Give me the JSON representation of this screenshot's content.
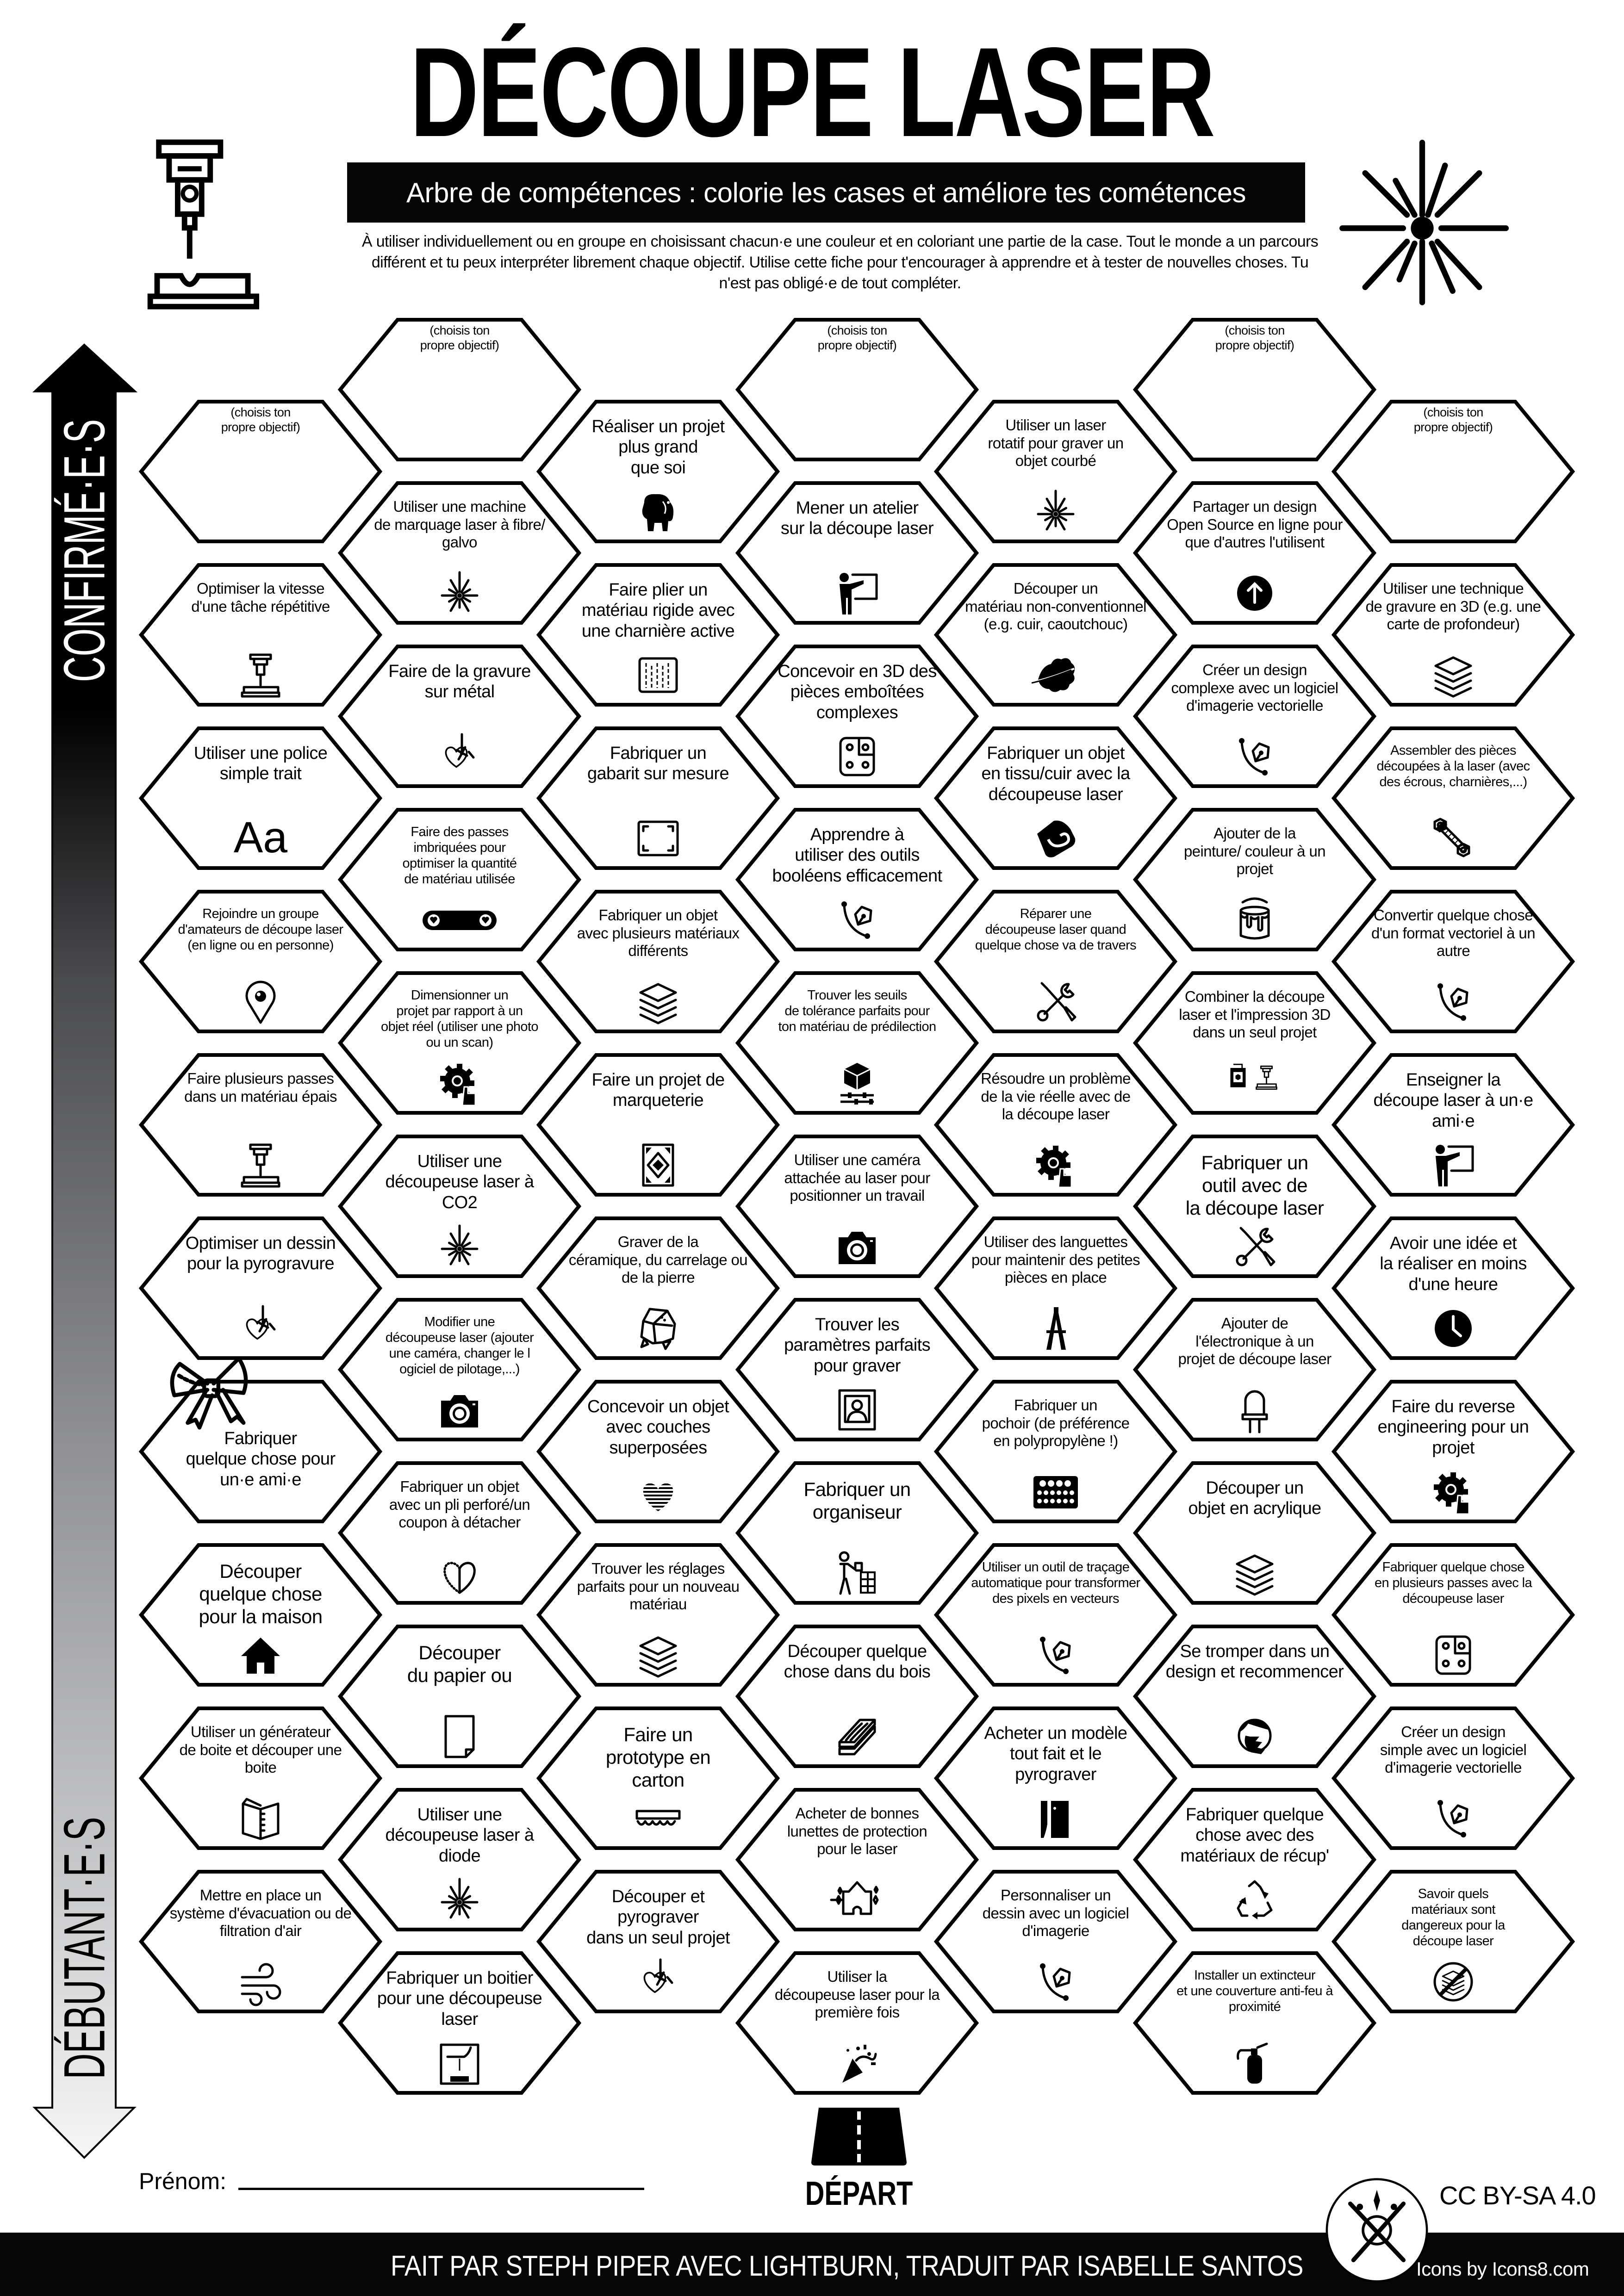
{
  "header": {
    "title": "DÉCOUPE LASER",
    "subtitle": "Arbre de compétences : colorie les cases et améliore tes cométences",
    "intro": "À utiliser individuellement ou en groupe en choisissant chacun·e une couleur et en coloriant une partie de la case. Tout le monde a un parcours\ndifférent et tu peux interpréter librement chaque objectif. Utilise cette fiche pour t'encourager à apprendre et à tester de nouvelles choses. Tu\nn'est pas obligé·e de tout compléter.",
    "left_icon": "laser-machine-icon",
    "right_icon": "laser-burst-icon"
  },
  "scale": {
    "top_label": "CONFIRMÉ·E·S",
    "bottom_label": "DÉBUTANT·E·S"
  },
  "columns": [
    [
      {
        "text": "(choisis ton\npropre objectif)",
        "icon": null
      },
      {
        "text": "Optimiser la vitesse\nd'une tâche répétitive",
        "icon": "laser-machine"
      },
      {
        "text": "Utiliser une police\nsimple trait",
        "icon": "font",
        "glyph": "Aa"
      },
      {
        "text": "Rejoindre un groupe\nd'amateurs de découpe laser\n(en ligne ou en personne)",
        "icon": "location-pin"
      },
      {
        "text": "Faire plusieurs passes\ndans un matériau épais",
        "icon": "laser-machine"
      },
      {
        "text": "Optimiser un dessin\npour la pyrogravure",
        "icon": "heart-laser"
      },
      {
        "text": "Fabriquer\nquelque chose pour\nun·e ami·e",
        "icon": "bow"
      },
      {
        "text": "Découper\nquelque chose\npour la maison",
        "icon": "house"
      },
      {
        "text": "Utiliser un générateur\nde boite et découper une\nboite",
        "icon": "box-book"
      },
      {
        "text": "Mettre en place un\nsystème d'évacuation ou de\nfiltration d'air",
        "icon": "wind"
      }
    ],
    [
      {
        "text": "(choisis ton\npropre objectif)",
        "icon": null
      },
      {
        "text": "Utiliser une machine\nde marquage laser à fibre/\ngalvo",
        "icon": "laser-burst"
      },
      {
        "text": "Faire de la gravure\nsur métal",
        "icon": "heart-laser"
      },
      {
        "text": "Faire des passes\nimbriquées pour\noptimiser la quantité\nde matériau utilisée",
        "icon": "nesting"
      },
      {
        "text": "Dimensionner un\nprojet par rapport à un\nobjet réel (utiliser une photo\nou un scan)",
        "icon": "gear-hand"
      },
      {
        "text": "Utiliser une\ndécoupeuse laser à\nCO2",
        "icon": "laser-burst"
      },
      {
        "text": "Modifier une\ndécoupeuse laser (ajouter\nune caméra, changer le l\nogiciel de pilotage,...)",
        "icon": "camera"
      },
      {
        "text": "Fabriquer un objet\navec un pli perforé/un\ncoupon à détacher",
        "icon": "half-heart"
      },
      {
        "text": "Découper\ndu papier ou",
        "icon": "paper"
      },
      {
        "text": "Utiliser une\ndécoupeuse laser à\ndiode",
        "icon": "laser-burst"
      },
      {
        "text": "Fabriquer un boitier\npour une découpeuse\nlaser",
        "icon": "enclosure"
      }
    ],
    [
      {
        "text": "Réaliser un projet\nplus grand\nque soi",
        "icon": "elephant"
      },
      {
        "text": "Faire plier un\nmatériau rigide avec\nune charnière active",
        "icon": "living-hinge"
      },
      {
        "text": "Fabriquer un\ngabarit sur mesure",
        "icon": "frame-corners"
      },
      {
        "text": "Fabriquer un objet\navec plusieurs matériaux\ndifférents",
        "icon": "layers"
      },
      {
        "text": "Faire un projet de\nmarqueterie",
        "icon": "marquetry"
      },
      {
        "text": "Graver de la\ncéramique, du carrelage ou\nde la pierre",
        "icon": "stone"
      },
      {
        "text": "Concevoir un objet\navec couches\nsuperposées",
        "icon": "striped-heart"
      },
      {
        "text": "Trouver les réglages\nparfaits pour un nouveau\nmatériau",
        "icon": "layers"
      },
      {
        "text": "Faire un\nprototype en\ncarton",
        "icon": "cardboard"
      },
      {
        "text": "Découper et\npyrograver\ndans un seul projet",
        "icon": "heart-laser"
      }
    ],
    [
      {
        "text": "(choisis ton\npropre objectif)",
        "icon": null
      },
      {
        "text": "Mener un atelier\nsur la découpe laser",
        "icon": "presenter"
      },
      {
        "text": "Concevoir en 3D des\npièces emboîtées\ncomplexes",
        "icon": "puzzle-box"
      },
      {
        "text": "Apprendre à\nutiliser des outils\nbooléens efficacement",
        "icon": "pen-tool"
      },
      {
        "text": "Trouver les seuils\nde tolérance parfaits pour\nton matériau de prédilection",
        "icon": "cube-sliders"
      },
      {
        "text": "Utiliser une caméra\nattachée au laser pour\npositionner un travail",
        "icon": "camera"
      },
      {
        "text": "Trouver les\nparamètres parfaits\npour graver",
        "icon": "portrait"
      },
      {
        "text": "Fabriquer un\norganiseur",
        "icon": "organizer"
      },
      {
        "text": "Découper quelque\nchose dans du bois",
        "icon": "wood"
      },
      {
        "text": "Acheter de bonnes\nlunettes de protection\npour le laser",
        "icon": "goggles"
      },
      {
        "text": "Utiliser la\ndécoupeuse laser pour la\npremière fois",
        "icon": "party-popper"
      }
    ],
    [
      {
        "text": "Utiliser un laser\nrotatif pour graver un\nobjet courbé",
        "icon": "laser-burst"
      },
      {
        "text": "Découper un\nmatériau non-conventionnel\n(e.g. cuir, caoutchouc)",
        "icon": "leaf"
      },
      {
        "text": "Fabriquer un objet\nen tissu/cuir avec la\ndécoupeuse laser",
        "icon": "leather"
      },
      {
        "text": "Réparer une\ndécoupeuse laser quand\nquelque chose va de travers",
        "icon": "tools"
      },
      {
        "text": "Résoudre un problème\nde la vie réelle avec de\nla découpe laser",
        "icon": "gear-hand"
      },
      {
        "text": "Utiliser des languettes\npour maintenir des petites\npièces en place",
        "icon": "letter-tabs"
      },
      {
        "text": "Fabriquer un\npochoir (de préférence\nen polypropylène !)",
        "icon": "stencil"
      },
      {
        "text": "Utiliser un outil de traçage\nautomatique pour transformer\ndes pixels en vecteurs",
        "icon": "pen-tool"
      },
      {
        "text": "Acheter un modèle\ntout fait et le\npyrograver",
        "icon": "pyrography-tool"
      },
      {
        "text": "Personnaliser un\ndessin avec un logiciel\nd'imagerie",
        "icon": "pen-tool"
      }
    ],
    [
      {
        "text": "(choisis ton\npropre objectif)",
        "icon": null
      },
      {
        "text": "Partager un design\nOpen Source en ligne pour\nque d'autres l'utilisent",
        "icon": "upload"
      },
      {
        "text": "Créer un design\ncomplexe avec un logiciel\nd'imagerie vectorielle",
        "icon": "pen-tool"
      },
      {
        "text": "Ajouter de la\npeinture/ couleur à un\nprojet",
        "icon": "paint-bucket"
      },
      {
        "text": "Combiner la découpe\nlaser et l'impression 3D\ndans un seul projet",
        "icon": "printer-laser"
      },
      {
        "text": "Fabriquer un\noutil avec de\nla découpe laser",
        "icon": "tools"
      },
      {
        "text": "Ajouter de\nl'électronique à un\nprojet de découpe laser",
        "icon": "led"
      },
      {
        "text": "Découper un\nobjet en acrylique",
        "icon": "layers"
      },
      {
        "text": "Se tromper dans un\ndesign et recommencer",
        "icon": "facepalm"
      },
      {
        "text": "Fabriquer quelque\nchose avec des\nmatériaux de récup'",
        "icon": "recycle"
      },
      {
        "text": "Installer un extincteur\net une couverture anti-feu à\nproximité",
        "icon": "extinguisher"
      }
    ],
    [
      {
        "text": "(choisis ton\npropre objectif)",
        "icon": null
      },
      {
        "text": "Utiliser une technique\nde gravure en 3D (e.g. une\ncarte de profondeur)",
        "icon": "layers"
      },
      {
        "text": "Assembler des pièces\ndécoupées à la laser (avec\ndes écrous, charnières,...)",
        "icon": "nuts-bolts"
      },
      {
        "text": "Convertir quelque chose\nd'un format vectoriel à un\nautre",
        "icon": "pen-tool"
      },
      {
        "text": "Enseigner la\ndécoupe laser à un·e\nami·e",
        "icon": "presenter"
      },
      {
        "text": "Avoir une idée et\nla réaliser en moins\nd'une heure",
        "icon": "clock"
      },
      {
        "text": "Faire du reverse\nengineering pour un\nprojet",
        "icon": "gear-hand"
      },
      {
        "text": "Fabriquer quelque chose\nen plusieurs passes avec la\ndécoupeuse laser",
        "icon": "puzzle-box"
      },
      {
        "text": "Créer un design\nsimple avec un logiciel\nd'imagerie vectorielle",
        "icon": "pen-tool"
      },
      {
        "text": "Savoir quels\nmatériaux sont\ndangereux pour la\ndécoupe laser",
        "icon": "no-layers"
      }
    ]
  ],
  "footer": {
    "name_label": "Prénom:",
    "start_label": "DÉPART",
    "start_icon": "road-icon",
    "license": "CC BY-SA 4.0",
    "credit": "FAIT PAR STEPH PIPER AVEC LIGHTBURN, TRADUIT PAR ISABELLE SANTOS",
    "icons_credit": "Icons by Icons8.com",
    "logo_icon": "crossed-tools-logo"
  },
  "colors": {
    "ink": "#000000",
    "paper": "#ffffff",
    "footer_bg": "#070707"
  }
}
